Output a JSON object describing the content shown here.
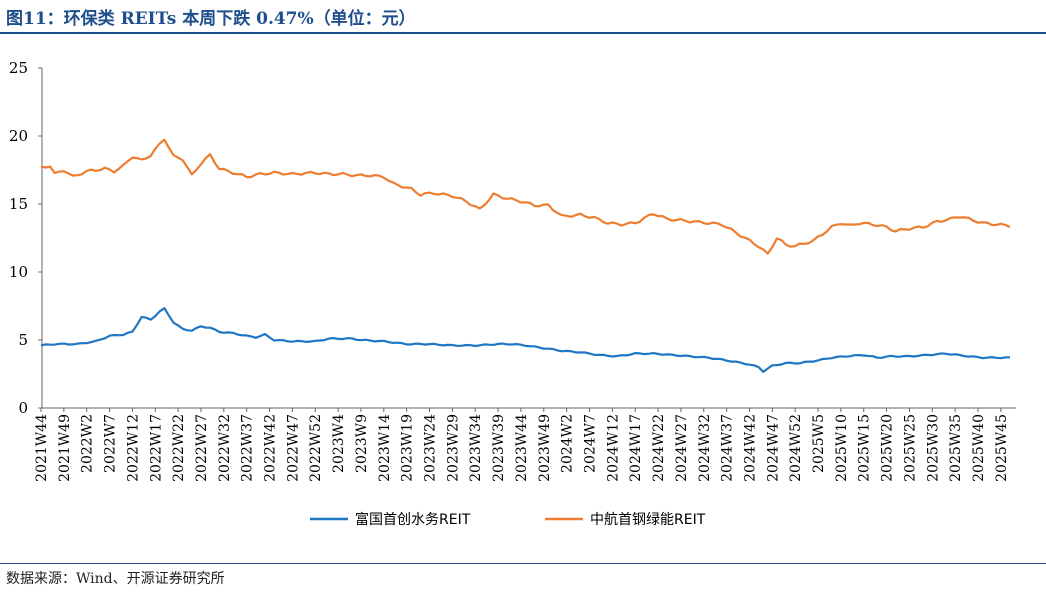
{
  "title": "图11：环保类 REITs 本周下跌 0.47%（单位：元）",
  "source": "数据来源：Wind、开源证券研究所",
  "chart_data": {
    "type": "line",
    "ylim": [
      0,
      25
    ],
    "yticks": [
      0,
      5,
      10,
      15,
      20,
      25
    ],
    "x_tick_labels": [
      "2021W44",
      "2021W49",
      "2022W2",
      "2022W7",
      "2022W12",
      "2022W17",
      "2022W22",
      "2022W27",
      "2022W32",
      "2022W37",
      "2022W42",
      "2022W47",
      "2022W52",
      "2023W4",
      "2023W9",
      "2023W14",
      "2023W19",
      "2023W24",
      "2023W29",
      "2023W34",
      "2023W39",
      "2023W44",
      "2023W49",
      "2024W2",
      "2024W7",
      "2024W12",
      "2024W17",
      "2024W22",
      "2024W27",
      "2024W32",
      "2024W37",
      "2024W42",
      "2024W47",
      "2024W52",
      "2025W5",
      "2025W10",
      "2025W15",
      "2025W20",
      "2025W25",
      "2025W30",
      "2025W35",
      "2025W40",
      "2025W45"
    ],
    "n_points": 213,
    "series": [
      {
        "name": "富国首创水务REIT",
        "color": "#1f77c4",
        "keypoints": [
          [
            0,
            4.6
          ],
          [
            3,
            4.7
          ],
          [
            8,
            4.7
          ],
          [
            12,
            4.9
          ],
          [
            15,
            5.3
          ],
          [
            18,
            5.4
          ],
          [
            20,
            5.6
          ],
          [
            22,
            6.7
          ],
          [
            24,
            6.5
          ],
          [
            26,
            7.1
          ],
          [
            27,
            7.3
          ],
          [
            29,
            6.3
          ],
          [
            31,
            5.8
          ],
          [
            33,
            5.7
          ],
          [
            35,
            6.0
          ],
          [
            37,
            5.9
          ],
          [
            39,
            5.6
          ],
          [
            42,
            5.5
          ],
          [
            45,
            5.3
          ],
          [
            47,
            5.2
          ],
          [
            49,
            5.4
          ],
          [
            51,
            5.0
          ],
          [
            55,
            4.9
          ],
          [
            60,
            4.9
          ],
          [
            63,
            5.1
          ],
          [
            66,
            5.1
          ],
          [
            68,
            5.1
          ],
          [
            70,
            5.0
          ],
          [
            75,
            4.9
          ],
          [
            80,
            4.7
          ],
          [
            85,
            4.7
          ],
          [
            90,
            4.6
          ],
          [
            95,
            4.6
          ],
          [
            100,
            4.7
          ],
          [
            103,
            4.7
          ],
          [
            106,
            4.6
          ],
          [
            110,
            4.4
          ],
          [
            114,
            4.2
          ],
          [
            118,
            4.1
          ],
          [
            122,
            3.9
          ],
          [
            126,
            3.8
          ],
          [
            130,
            4.0
          ],
          [
            134,
            4.0
          ],
          [
            138,
            3.9
          ],
          [
            142,
            3.8
          ],
          [
            146,
            3.7
          ],
          [
            150,
            3.5
          ],
          [
            155,
            3.2
          ],
          [
            157,
            3.0
          ],
          [
            158,
            2.7
          ],
          [
            160,
            3.1
          ],
          [
            163,
            3.3
          ],
          [
            166,
            3.3
          ],
          [
            170,
            3.5
          ],
          [
            173,
            3.7
          ],
          [
            176,
            3.8
          ],
          [
            180,
            3.9
          ],
          [
            183,
            3.7
          ],
          [
            186,
            3.8
          ],
          [
            190,
            3.8
          ],
          [
            194,
            3.9
          ],
          [
            198,
            4.0
          ],
          [
            203,
            3.8
          ],
          [
            206,
            3.7
          ],
          [
            208,
            3.7
          ],
          [
            212,
            3.7
          ],
          [
            213,
            3.75
          ]
        ]
      },
      {
        "name": "中航首钢绿能REIT",
        "color": "#ed7d31",
        "keypoints": [
          [
            0,
            17.7
          ],
          [
            2,
            17.8
          ],
          [
            3,
            17.2
          ],
          [
            5,
            17.5
          ],
          [
            7,
            17.0
          ],
          [
            10,
            17.4
          ],
          [
            12,
            17.5
          ],
          [
            14,
            17.6
          ],
          [
            16,
            17.4
          ],
          [
            18,
            17.8
          ],
          [
            20,
            18.5
          ],
          [
            22,
            18.2
          ],
          [
            24,
            18.6
          ],
          [
            26,
            19.4
          ],
          [
            27,
            19.8
          ],
          [
            29,
            18.5
          ],
          [
            31,
            18.3
          ],
          [
            33,
            17.1
          ],
          [
            35,
            18.0
          ],
          [
            37,
            18.6
          ],
          [
            39,
            17.6
          ],
          [
            42,
            17.3
          ],
          [
            45,
            17.0
          ],
          [
            48,
            17.2
          ],
          [
            51,
            17.3
          ],
          [
            55,
            17.2
          ],
          [
            60,
            17.3
          ],
          [
            63,
            17.2
          ],
          [
            66,
            17.2
          ],
          [
            69,
            17.1
          ],
          [
            72,
            17.1
          ],
          [
            75,
            17.0
          ],
          [
            77,
            16.5
          ],
          [
            79,
            16.3
          ],
          [
            81,
            16.1
          ],
          [
            83,
            15.7
          ],
          [
            86,
            15.8
          ],
          [
            90,
            15.6
          ],
          [
            93,
            15.2
          ],
          [
            96,
            14.6
          ],
          [
            99,
            15.7
          ],
          [
            102,
            15.4
          ],
          [
            105,
            15.2
          ],
          [
            108,
            14.9
          ],
          [
            111,
            14.9
          ],
          [
            114,
            14.1
          ],
          [
            118,
            14.2
          ],
          [
            121,
            14.0
          ],
          [
            124,
            13.6
          ],
          [
            127,
            13.5
          ],
          [
            130,
            13.6
          ],
          [
            134,
            14.3
          ],
          [
            137,
            13.9
          ],
          [
            140,
            13.8
          ],
          [
            143,
            13.7
          ],
          [
            146,
            13.6
          ],
          [
            149,
            13.5
          ],
          [
            152,
            12.9
          ],
          [
            155,
            12.3
          ],
          [
            157,
            11.9
          ],
          [
            159,
            11.3
          ],
          [
            161,
            12.5
          ],
          [
            163,
            12.0
          ],
          [
            165,
            11.9
          ],
          [
            167,
            12.1
          ],
          [
            169,
            12.3
          ],
          [
            171,
            12.8
          ],
          [
            173,
            13.3
          ],
          [
            175,
            13.6
          ],
          [
            177,
            13.4
          ],
          [
            179,
            13.6
          ],
          [
            182,
            13.5
          ],
          [
            185,
            13.3
          ],
          [
            187,
            13.0
          ],
          [
            190,
            13.2
          ],
          [
            193,
            13.3
          ],
          [
            196,
            13.7
          ],
          [
            199,
            13.9
          ],
          [
            201,
            14.1
          ],
          [
            203,
            13.9
          ],
          [
            206,
            13.6
          ],
          [
            209,
            13.5
          ],
          [
            212,
            13.4
          ],
          [
            213,
            13.4
          ]
        ]
      }
    ]
  }
}
